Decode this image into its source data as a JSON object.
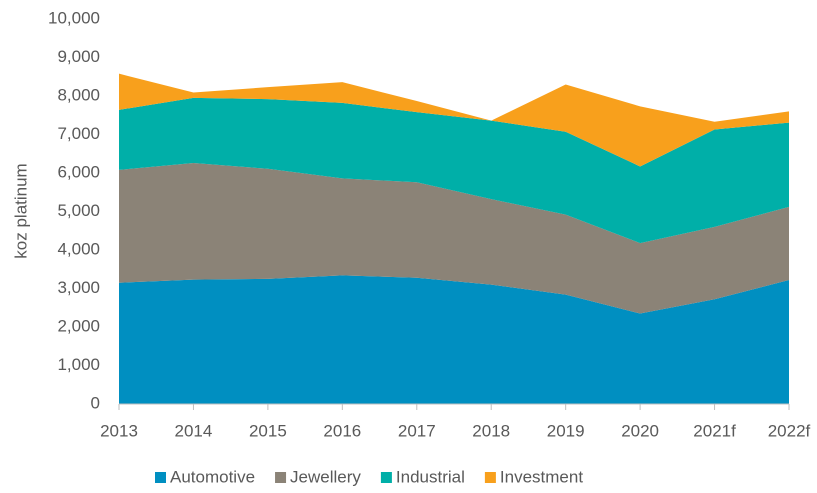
{
  "chart_data": {
    "type": "stacked_area",
    "y_label": "koz platinum",
    "categories": [
      "2013",
      "2014",
      "2015",
      "2016",
      "2017",
      "2018",
      "2019",
      "2020",
      "2021f",
      "2022f"
    ],
    "series": [
      {
        "name": "Automotive",
        "color": "#008fc1",
        "values": [
          3150,
          3230,
          3250,
          3340,
          3280,
          3100,
          2840,
          2350,
          2720,
          3220
        ]
      },
      {
        "name": "Jewellery",
        "color": "#8b8377",
        "values": [
          2930,
          3030,
          2860,
          2520,
          2480,
          2220,
          2080,
          1830,
          1880,
          1900
        ]
      },
      {
        "name": "Industrial",
        "color": "#00afa8",
        "values": [
          1560,
          1690,
          1810,
          1960,
          1820,
          2040,
          2150,
          1990,
          2530,
          2190
        ]
      },
      {
        "name": "Investment",
        "color": "#f8a01c",
        "values": [
          940,
          140,
          310,
          540,
          290,
          0,
          1230,
          1560,
          200,
          290
        ]
      }
    ],
    "ylim": [
      0,
      10000
    ],
    "yticks": [
      0,
      {
        "value": 1000,
        "label": "1,000"
      },
      {
        "value": 2000,
        "label": "2,000"
      },
      {
        "value": 3000,
        "label": "3,000"
      },
      {
        "value": 4000,
        "label": "4,000"
      },
      {
        "value": 5000,
        "label": "5,000"
      },
      {
        "value": 6000,
        "label": "6,000"
      },
      {
        "value": 7000,
        "label": "7,000"
      },
      {
        "value": 8000,
        "label": "8,000"
      },
      {
        "value": 9000,
        "label": "9,000"
      },
      {
        "value": 10000,
        "label": "10,000"
      }
    ],
    "legend": "bottom"
  }
}
